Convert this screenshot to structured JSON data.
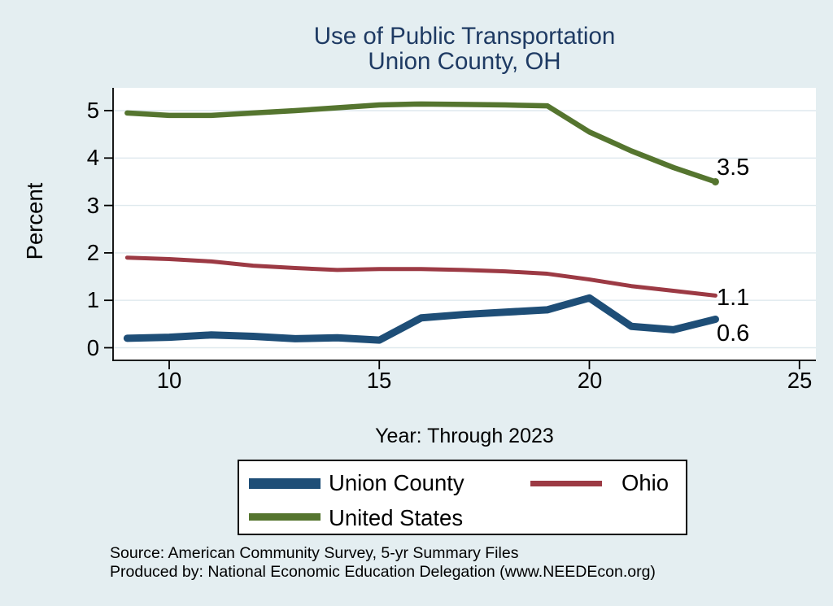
{
  "colors": {
    "background": "#e4eef1",
    "plot_background": "#ffffff",
    "gridline": "#dfe9ee",
    "axis": "#000000",
    "title": "#1e3a63",
    "union_county_blue": "#1e4e77",
    "ohio_maroon": "#9c3a44",
    "united_states_green": "#55752f"
  },
  "chart_data": {
    "type": "line",
    "title": "Use of Public Transportation",
    "subtitle": "Union County, OH",
    "ylabel": "Percent",
    "xlabel": "Year: Through 2023",
    "grid": true,
    "legend_position": "bottom",
    "xlim": [
      8.7,
      25.4
    ],
    "ylim": [
      0,
      5.45
    ],
    "x_ticks": [
      "10",
      "15",
      "20",
      "25"
    ],
    "y_ticks": [
      "0",
      "1",
      "2",
      "3",
      "4",
      "5"
    ],
    "x": [
      9,
      10,
      11,
      12,
      13,
      14,
      15,
      16,
      17,
      18,
      19,
      20,
      21,
      22,
      23
    ],
    "series": [
      {
        "name": "Union County",
        "color": "#1e4e77",
        "line_width": 9,
        "end_label": "0.6",
        "end_marker": false,
        "values": [
          0.2,
          0.22,
          0.27,
          0.24,
          0.19,
          0.21,
          0.16,
          0.63,
          0.7,
          0.75,
          0.8,
          1.05,
          0.45,
          0.38,
          0.6
        ]
      },
      {
        "name": "Ohio",
        "color": "#9c3a44",
        "line_width": 5,
        "end_label": "1.1",
        "end_marker": false,
        "values": [
          1.9,
          1.87,
          1.82,
          1.73,
          1.68,
          1.64,
          1.66,
          1.66,
          1.64,
          1.61,
          1.56,
          1.44,
          1.3,
          1.2,
          1.1
        ]
      },
      {
        "name": "United States",
        "color": "#55752f",
        "line_width": 6.5,
        "end_label": "3.5",
        "end_marker": true,
        "values": [
          4.95,
          4.9,
          4.9,
          4.95,
          5.0,
          5.06,
          5.12,
          5.14,
          5.13,
          5.12,
          5.1,
          4.55,
          4.15,
          3.8,
          3.5
        ]
      }
    ],
    "notes": [
      "Source: American Community Survey, 5-yr Summary Files",
      "Produced by: National Economic Education Delegation (www.NEEDEcon.org)"
    ]
  }
}
